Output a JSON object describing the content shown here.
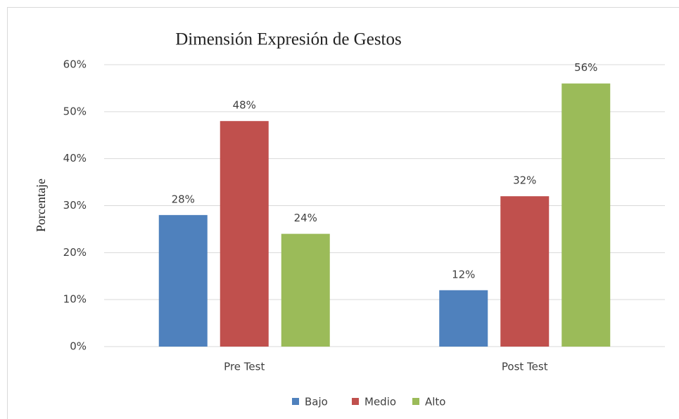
{
  "chart_data": {
    "type": "bar",
    "title": "Dimensión Expresión de Gestos",
    "y_label": "Porcentaje",
    "categories": [
      "Pre Test",
      "Post Test"
    ],
    "series": [
      {
        "name": "Bajo",
        "color": "#4f81bd",
        "values": [
          28,
          12
        ],
        "value_labels": [
          "28%",
          "12%"
        ]
      },
      {
        "name": "Medio",
        "color": "#c0504d",
        "values": [
          48,
          32
        ],
        "value_labels": [
          "48%",
          "32%"
        ]
      },
      {
        "name": "Alto",
        "color": "#9bbb59",
        "values": [
          24,
          56
        ],
        "value_labels": [
          "24%",
          "56%"
        ]
      }
    ],
    "ylim": [
      0,
      60
    ],
    "yticks": [
      {
        "value": 0,
        "label": "0%"
      },
      {
        "value": 10,
        "label": "10%"
      },
      {
        "value": 20,
        "label": "20%"
      },
      {
        "value": 30,
        "label": "30%"
      },
      {
        "value": 40,
        "label": "40%"
      },
      {
        "value": 50,
        "label": "50%"
      },
      {
        "value": 60,
        "label": "60%"
      }
    ],
    "grid": true,
    "legend": "bottom"
  }
}
